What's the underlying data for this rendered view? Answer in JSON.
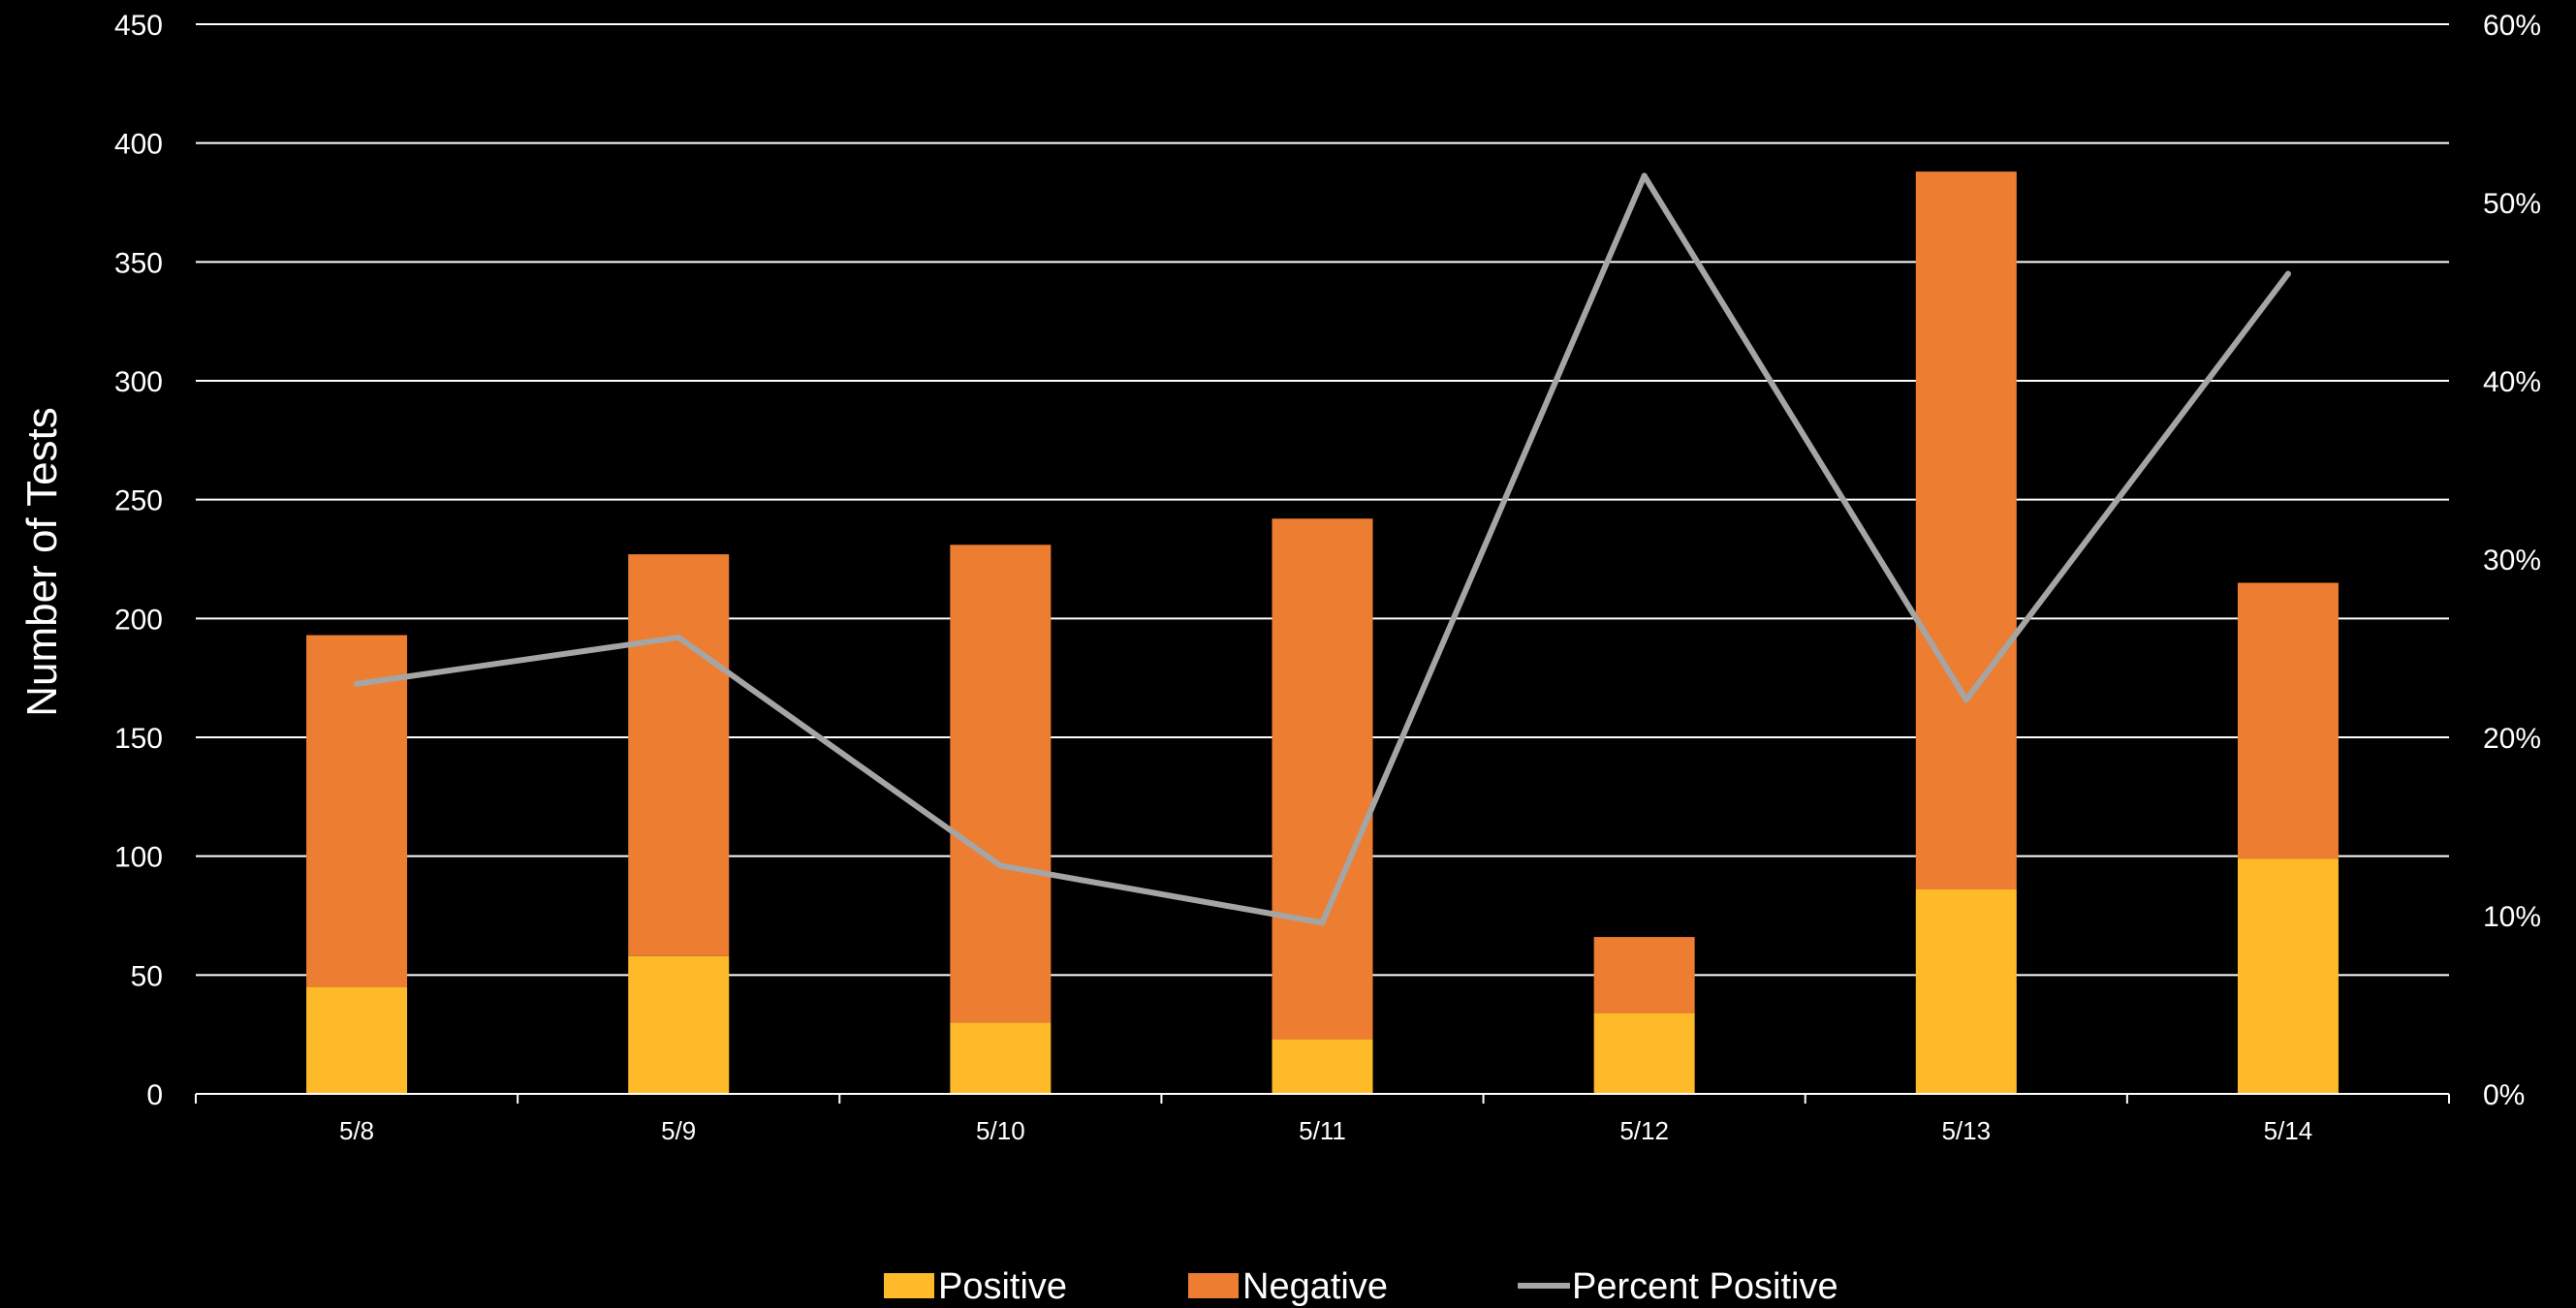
{
  "chart_data": {
    "type": "bar",
    "stacked": true,
    "title": "",
    "xlabel": "",
    "ylabel": "Number of Tests",
    "y2label": "",
    "categories": [
      "5/8",
      "5/9",
      "5/10",
      "5/11",
      "5/12",
      "5/13",
      "5/14"
    ],
    "series": [
      {
        "name": "Positive",
        "type": "bar",
        "color": "#FFBA2A",
        "values": [
          45,
          58,
          30,
          23,
          34,
          86,
          99
        ]
      },
      {
        "name": "Negative",
        "type": "bar",
        "color": "#ED7D31",
        "values": [
          148,
          169,
          201,
          219,
          32,
          302,
          116
        ]
      },
      {
        "name": "Percent Positive",
        "type": "line",
        "axis": "right",
        "color": "#A5A5A5",
        "values": [
          23.0,
          25.6,
          12.8,
          9.6,
          51.5,
          22.1,
          46.0
        ]
      }
    ],
    "ylim": [
      0,
      450
    ],
    "y_ticks": [
      "0",
      "50",
      "100",
      "150",
      "200",
      "250",
      "300",
      "350",
      "400",
      "450"
    ],
    "y2lim": [
      0,
      60
    ],
    "y2_ticks": [
      "0%",
      "10%",
      "20%",
      "30%",
      "40%",
      "50%",
      "60%"
    ],
    "grid": true,
    "legend_position": "bottom",
    "background": "#000000",
    "grid_color": "#FFFFFF",
    "text_color": "#FFFFFF"
  }
}
